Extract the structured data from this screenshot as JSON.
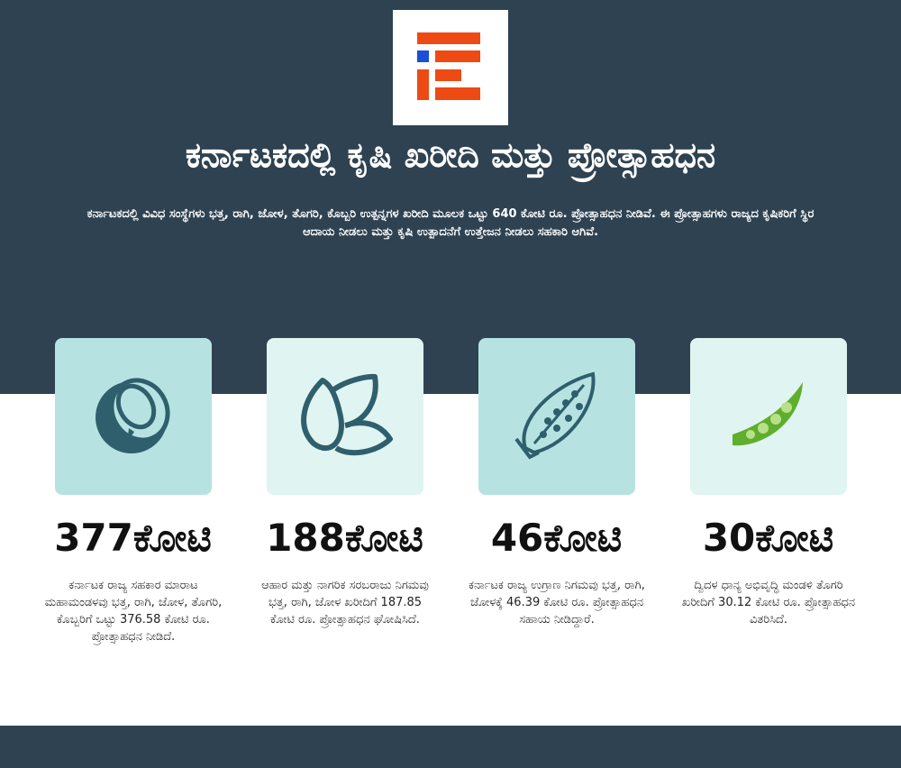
{
  "title": "ಕರ್ನಾಟಕದಲ್ಲಿ ಕೃಷಿ ಖರೀದಿ ಮತ್ತು ಪ್ರೋತ್ಸಾಹಧನ",
  "subtitle": "ಕರ್ನಾಟಕದಲ್ಲಿ ವಿವಿಧ ಸಂಸ್ಥೆಗಳು ಭತ್ತ, ರಾಗಿ, ಜೋಳ, ತೊಗರಿ, ಕೊಬ್ಬರಿ ಉತ್ಪನ್ನಗಳ ಖರೀದಿ ಮೂಲಕ ಒಟ್ಟು 640 ಕೋಟಿ ರೂ. ಪ್ರೋತ್ಸಾಹಧನ ನೀಡಿವೆ. ಈ ಪ್ರೋತ್ಸಾಹಗಳು ರಾಜ್ಯದ ಕೃಷಿಕರಿಗೆ ಸ್ಥಿರ ಆದಾಯ ನೀಡಲು ಮತ್ತು ಕೃಷಿ ಉತ್ಪಾದನೆಗೆ ಉತ್ತೇಜನ ನೀಡಲು ಸಹಕಾರಿ ಆಗಿವೆ.",
  "colors": {
    "background_dark": "#2e4251",
    "accent": "#ee4a13",
    "logo_blue": "#1a4fd6",
    "icon": "#2f5f6c",
    "card_a": "#b6e3e2",
    "card_b": "#e0f4f1",
    "pea": "#5fae2e"
  },
  "cards": [
    {
      "icon": "coconut-icon",
      "amount": "377ಕೋಟಿ",
      "desc": "ಕರ್ನಾಟಕ ರಾಜ್ಯ ಸಹಕಾರ ಮಾರಾಟ ಮಹಾಮಂಡಳವು ಭತ್ತ, ರಾಗಿ, ಜೋಳ, ತೊಗರಿ, ಕೊಬ್ಬರಿಗೆ ಒಟ್ಟು 376.58 ಕೋಟಿ ರೂ. ಪ್ರೋತ್ಸಾಹಧನ ನೀಡಿದೆ."
    },
    {
      "icon": "grains-icon",
      "amount": "188ಕೋಟಿ",
      "desc": "ಆಹಾರ ಮತ್ತು ನಾಗರಿಕ ಸರಬರಾಜು ನಿಗಮವು ಭತ್ತ, ರಾಗಿ, ಜೋಳ ಖರೀದಿಗೆ 187.85 ಕೋಟಿ ರೂ. ಪ್ರೋತ್ಸಾಹಧನ ಘೋಷಿಸಿದೆ."
    },
    {
      "icon": "corn-icon",
      "amount": "46ಕೋಟಿ",
      "desc": "ಕರ್ನಾಟಕ ರಾಜ್ಯ ಉಗ್ರಾಣ ನಿಗಮವು ಭತ್ತ, ರಾಗಿ, ಜೋಳಕ್ಕೆ 46.39 ಕೋಟಿ ರೂ. ಪ್ರೋತ್ಸಾಹಧನ ಸಹಾಯ ನೀಡಿದ್ದಾರೆ."
    },
    {
      "icon": "pea-pod-icon",
      "amount": "30ಕೋಟಿ",
      "desc": "ದ್ವಿದಳ ಧಾನ್ಯ ಅಭಿವೃದ್ಧಿ ಮಂಡಳಿ ತೊಗರಿ ಖರೀದಿಗೆ 30.12 ಕೋಟಿ ರೂ. ಪ್ರೋತ್ಸಾಹಧನ ವಿತರಿಸಿದೆ."
    }
  ]
}
